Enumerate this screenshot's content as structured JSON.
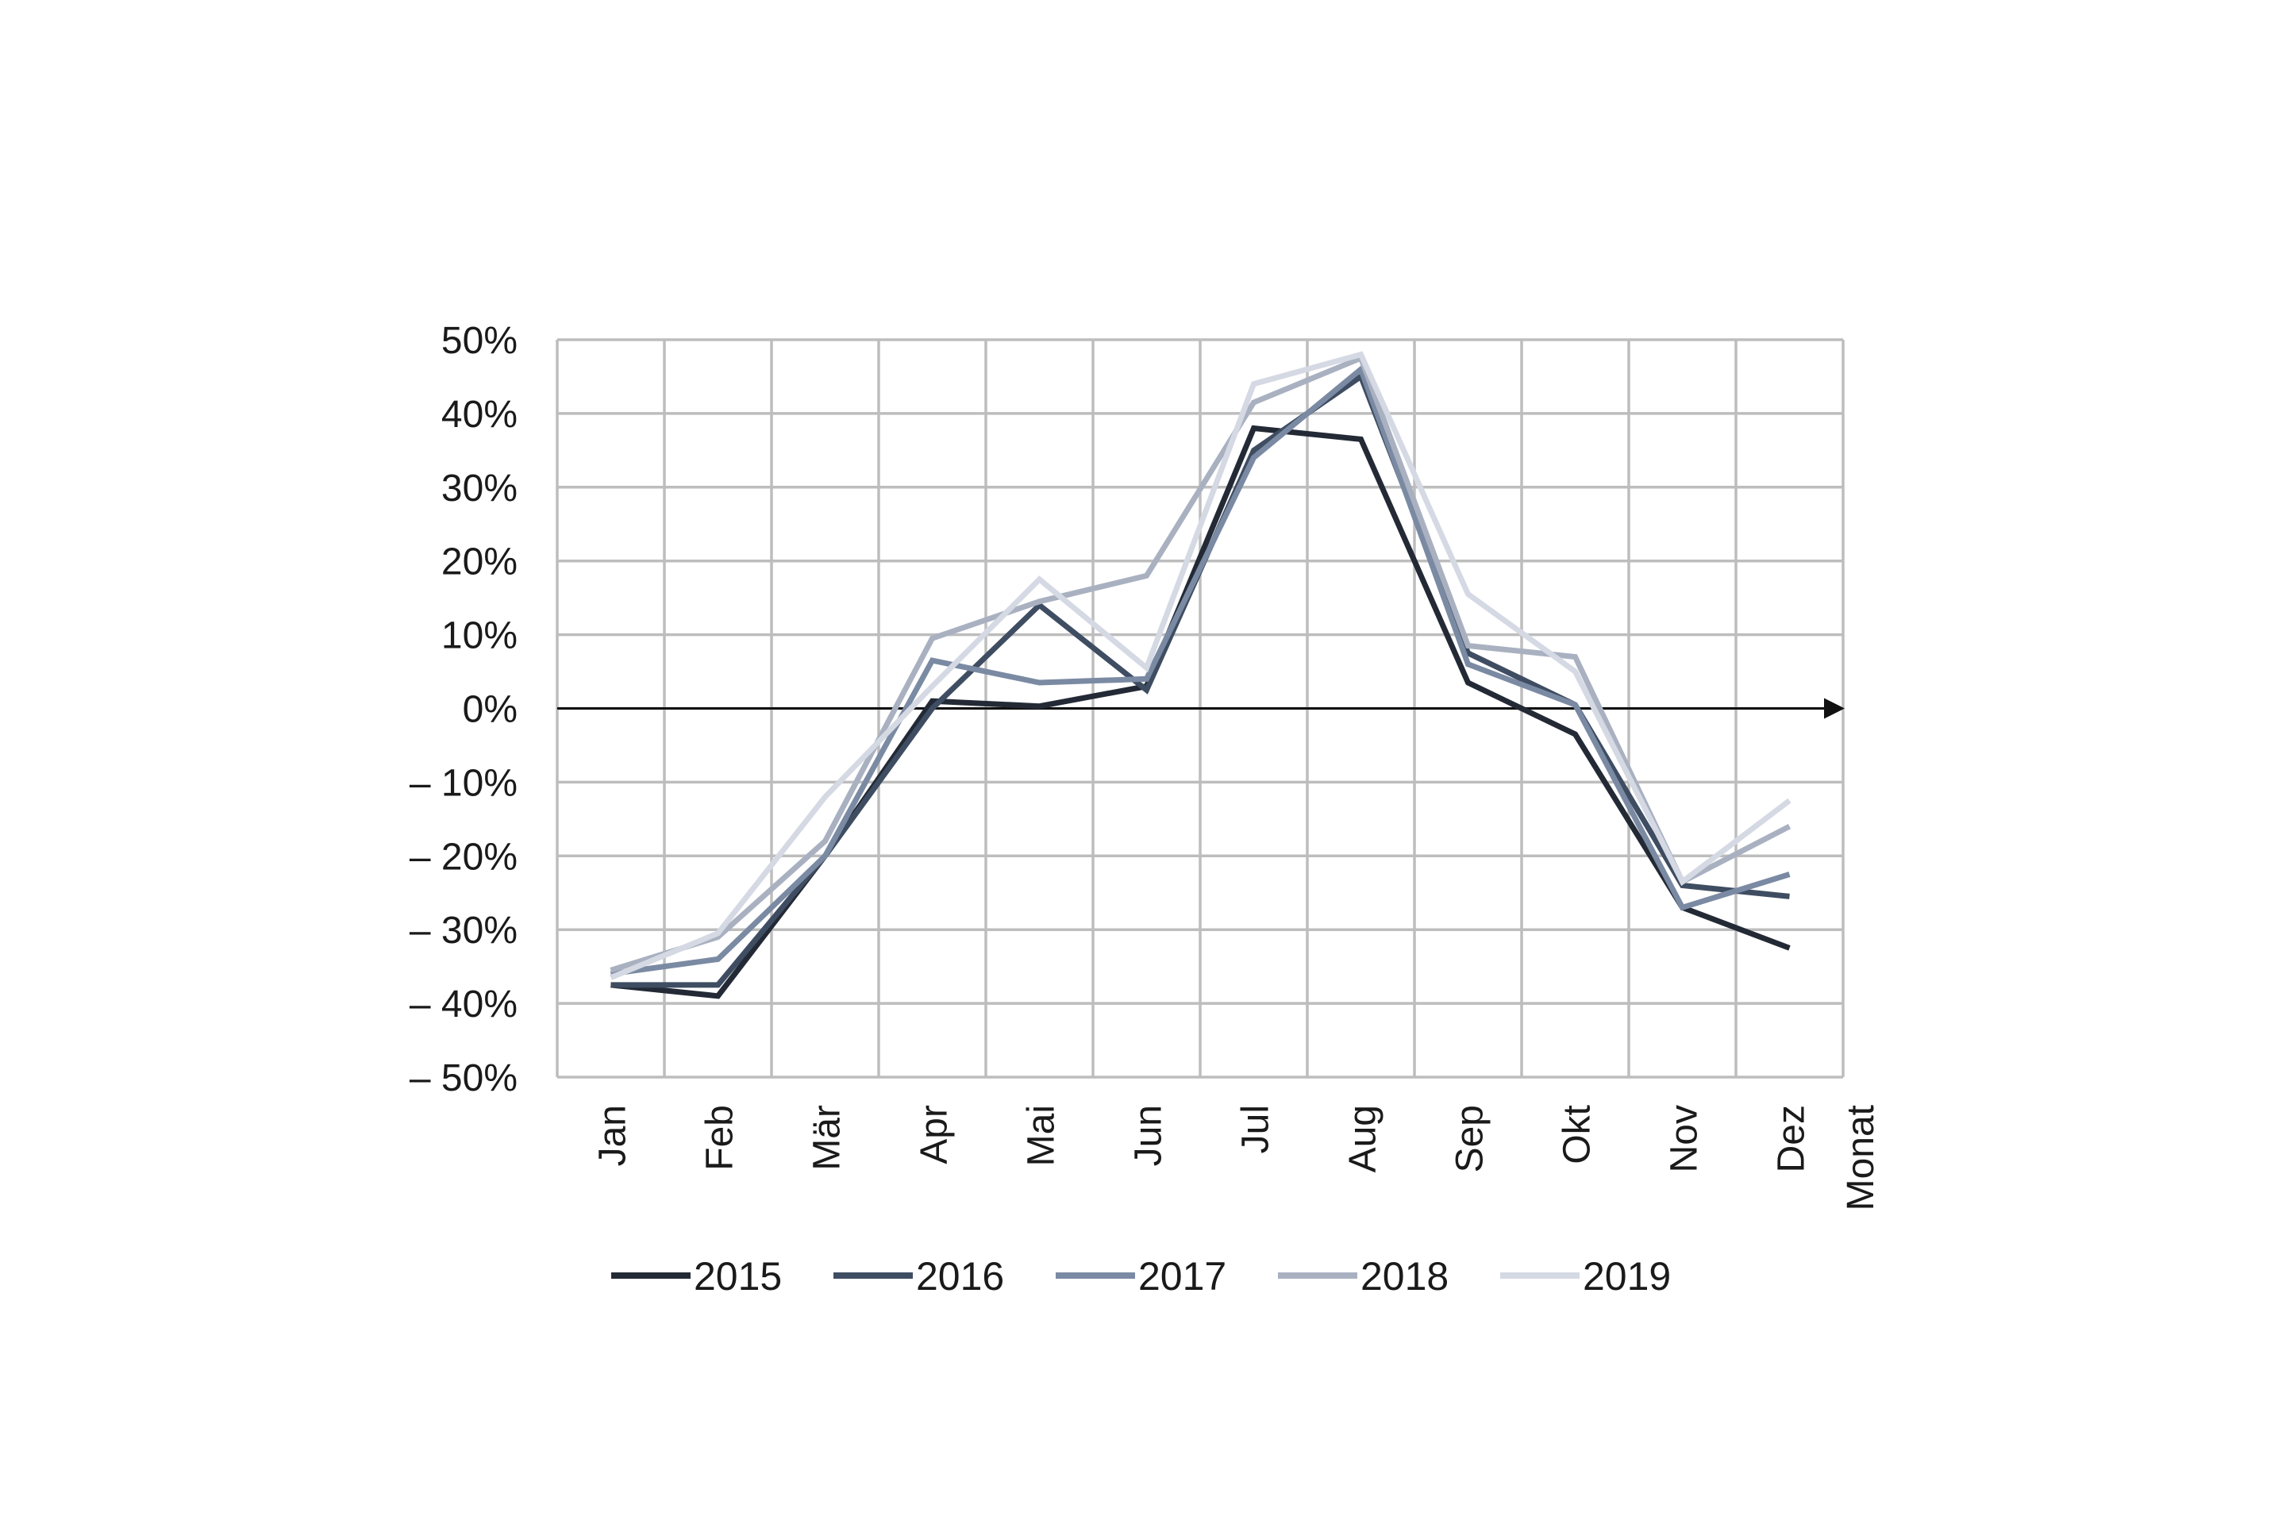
{
  "chart_data": {
    "type": "line",
    "categories": [
      "Jan",
      "Feb",
      "Mär",
      "Apr",
      "Mai",
      "Jun",
      "Jul",
      "Aug",
      "Sep",
      "Okt",
      "Nov",
      "Dez"
    ],
    "xlabel": "Monat",
    "ylabel": "",
    "ylim": [
      -50,
      50
    ],
    "yticks": [
      50,
      40,
      30,
      20,
      10,
      0,
      -10,
      -20,
      -30,
      -40,
      -50
    ],
    "ytick_labels": [
      "50%",
      "40%",
      "30%",
      "20%",
      "10%",
      "0%",
      "– 10%",
      "– 20%",
      "– 30%",
      "– 40%",
      "– 50%"
    ],
    "grid": true,
    "legend": "bottom",
    "series": [
      {
        "name": "2015",
        "color": "#232a36",
        "values": [
          -37.5,
          -39,
          -20,
          1,
          0.3,
          3,
          38,
          36.5,
          3.5,
          -3.5,
          -27,
          -32.5
        ]
      },
      {
        "name": "2016",
        "color": "#3f4d62",
        "values": [
          -37.5,
          -37.5,
          -20,
          0,
          14,
          2.5,
          35,
          45,
          7.5,
          0.5,
          -24,
          -25.5
        ]
      },
      {
        "name": "2017",
        "color": "#7b8aa3",
        "values": [
          -36,
          -34,
          -20,
          6.5,
          3.5,
          4,
          34,
          46,
          6,
          0.5,
          -27,
          -22.5
        ]
      },
      {
        "name": "2018",
        "color": "#a9b1c1",
        "values": [
          -35.5,
          -31,
          -18,
          9.5,
          14.5,
          18,
          41.5,
          47.5,
          8.5,
          7,
          -23.5,
          -16
        ]
      },
      {
        "name": "2019",
        "color": "#d5d9e3",
        "values": [
          -36.5,
          -30.5,
          -12,
          3,
          17.5,
          5.5,
          44,
          48,
          15.5,
          5,
          -23.5,
          -12.5
        ]
      }
    ]
  }
}
